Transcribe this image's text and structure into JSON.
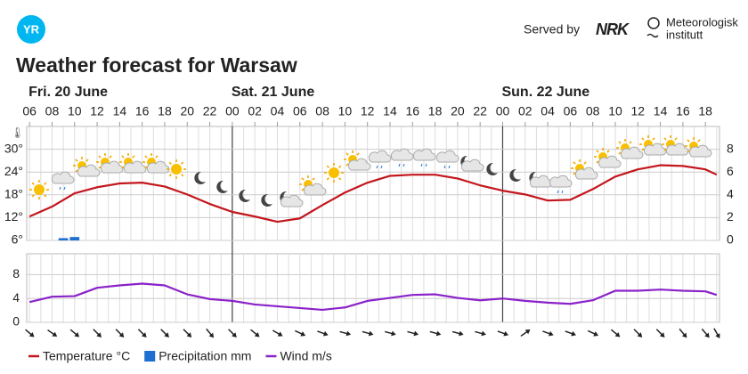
{
  "header": {
    "logo": "YR",
    "served_by": "Served by",
    "nrk": "NRK",
    "met": [
      "Meteorologisk",
      "institutt"
    ]
  },
  "chart_data": [
    {
      "type": "line",
      "title": "Weather forecast for Warsaw",
      "days": [
        {
          "label": "Fri. 20 June",
          "x": 6
        },
        {
          "label": "Sat. 21 June",
          "x": 24
        },
        {
          "label": "Sun. 22 June",
          "x": 48
        }
      ],
      "xlim": [
        5.75,
        67.25
      ],
      "xticks": [
        {
          "value": 6,
          "label": "06"
        },
        {
          "value": 8,
          "label": "08"
        },
        10,
        12,
        14,
        16,
        18,
        20,
        22,
        {
          "value": 24,
          "label": "00"
        },
        {
          "value": 26,
          "label": "02"
        },
        {
          "value": 28,
          "label": "04"
        },
        {
          "value": 30,
          "label": "06"
        },
        {
          "value": 32,
          "label": "08"
        },
        {
          "value": 34,
          "label": "10"
        },
        {
          "value": 36,
          "label": "12"
        },
        {
          "value": 38,
          "label": "14"
        },
        {
          "value": 40,
          "label": "16"
        },
        {
          "value": 42,
          "label": "18"
        },
        {
          "value": 44,
          "label": "20"
        },
        {
          "value": 46,
          "label": "22"
        },
        {
          "value": 48,
          "label": "00"
        },
        {
          "value": 50,
          "label": "02"
        },
        {
          "value": 52,
          "label": "04"
        },
        {
          "value": 54,
          "label": "06"
        },
        {
          "value": 56,
          "label": "08"
        },
        {
          "value": 58,
          "label": "10"
        },
        {
          "value": 60,
          "label": "12"
        },
        {
          "value": 62,
          "label": "14"
        },
        {
          "value": 64,
          "label": "16"
        },
        {
          "value": 66,
          "label": "18"
        }
      ],
      "ylim": [
        6,
        36
      ],
      "yticks": [
        {
          "value": 6,
          "label": "6°"
        },
        {
          "value": 12,
          "label": "12°"
        },
        {
          "value": 18,
          "label": "18°"
        },
        {
          "value": 24,
          "label": "24°"
        },
        {
          "value": 30,
          "label": "30°"
        }
      ],
      "y2lim": [
        0,
        10
      ],
      "y2ticks": [
        0,
        2,
        4,
        6,
        8
      ],
      "grid": true,
      "series": [
        {
          "name": "Temperature °C",
          "type": "line",
          "color": "#c3161c",
          "x": [
            6,
            8,
            10,
            12,
            14,
            16,
            18,
            20,
            22,
            24,
            26,
            28,
            30,
            32,
            34,
            36,
            38,
            40,
            42,
            44,
            46,
            48,
            50,
            52,
            54,
            56,
            58,
            60,
            62,
            64,
            66,
            67
          ],
          "values": [
            12.3,
            14.9,
            18.4,
            20,
            21,
            21.2,
            20.2,
            18.1,
            15.6,
            13.5,
            12.3,
            10.9,
            11.8,
            15.3,
            18.6,
            21.2,
            23,
            23.3,
            23.3,
            22.3,
            20.5,
            19.1,
            18.1,
            16.5,
            16.7,
            19.5,
            22.8,
            24.7,
            25.8,
            25.6,
            24.7,
            23.3
          ]
        },
        {
          "name": "Precipitation mm",
          "type": "bar",
          "axis": "y2",
          "color": "#1f6fd0",
          "x": [
            9,
            10
          ],
          "values": [
            0.2,
            0.3
          ]
        }
      ]
    },
    {
      "type": "line",
      "xlim": [
        5.75,
        67.25
      ],
      "ylim": [
        0,
        11.5
      ],
      "yticks": [
        0,
        4,
        8
      ],
      "grid": true,
      "x": [
        6,
        8,
        10,
        12,
        14,
        16,
        18,
        20,
        22,
        24,
        26,
        28,
        30,
        32,
        34,
        36,
        38,
        40,
        42,
        44,
        46,
        48,
        50,
        52,
        54,
        56,
        58,
        60,
        62,
        64,
        66,
        67
      ],
      "wind_arrow_angle": [
        40,
        35,
        40,
        45,
        45,
        45,
        45,
        45,
        50,
        45,
        40,
        30,
        25,
        20,
        15,
        15,
        15,
        15,
        15,
        15,
        15,
        20,
        -35,
        20,
        20,
        25,
        40,
        45,
        45,
        50,
        50,
        60
      ],
      "series": [
        {
          "name": "Wind m/s",
          "type": "line",
          "color": "#8a22c9",
          "values": [
            3.4,
            4.3,
            4.4,
            5.8,
            6.2,
            6.5,
            6.2,
            4.7,
            3.9,
            3.6,
            3,
            2.7,
            2.4,
            2.1,
            2.5,
            3.6,
            4.1,
            4.6,
            4.7,
            4.1,
            3.7,
            4,
            3.6,
            3.3,
            3.1,
            3.7,
            5.3,
            5.3,
            5.5,
            5.3,
            5.2,
            4.6
          ]
        }
      ]
    }
  ]
}
